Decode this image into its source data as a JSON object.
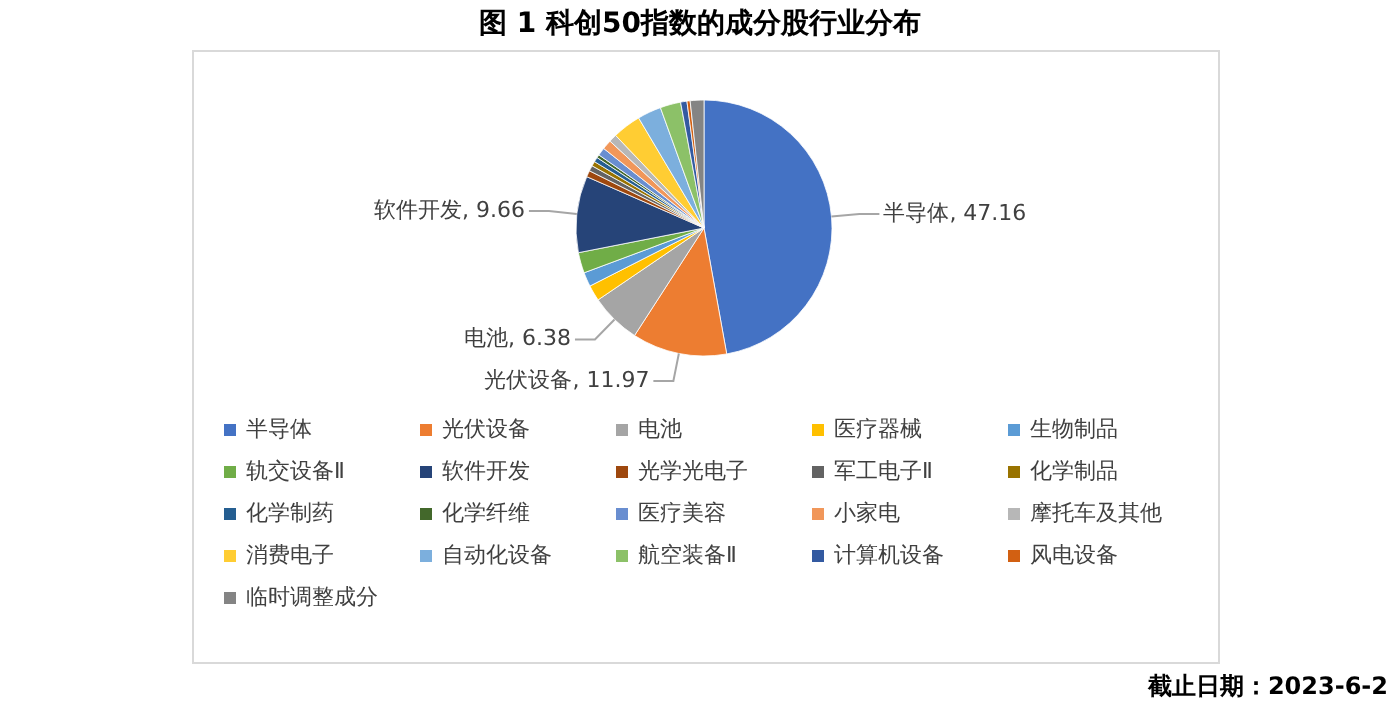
{
  "chart_data": {
    "type": "pie",
    "title": "图 1  科创50指数的成分股行业分布",
    "categories": [
      "半导体",
      "光伏设备",
      "电池",
      "医疗器械",
      "生物制品",
      "轨交设备Ⅱ",
      "软件开发",
      "光学光电子",
      "军工电子Ⅱ",
      "化学制品",
      "化学制药",
      "化学纤维",
      "医疗美容",
      "小家电",
      "摩托车及其他",
      "消费电子",
      "自动化设备",
      "航空装备Ⅱ",
      "计算机设备",
      "风电设备",
      "临时调整成分"
    ],
    "values": [
      47.16,
      11.97,
      6.38,
      2.0,
      1.8,
      2.6,
      9.66,
      0.8,
      0.7,
      0.6,
      0.6,
      0.4,
      1.0,
      1.2,
      1.0,
      3.6,
      3.0,
      2.6,
      0.8,
      0.4,
      1.73
    ],
    "colors": [
      "#4472c4",
      "#ed7d31",
      "#a5a5a5",
      "#ffc000",
      "#5b9bd5",
      "#70ad47",
      "#264478",
      "#9e480e",
      "#636363",
      "#997300",
      "#255e91",
      "#43682b",
      "#698ed0",
      "#f1975a",
      "#b7b7b7",
      "#ffcd33",
      "#7cafdd",
      "#8cc168",
      "#335aa1",
      "#d26012",
      "#848484"
    ],
    "value_labels": [
      "半导体, 47.16",
      "光伏设备, 11.97",
      "电池, 6.38",
      null,
      null,
      null,
      "软件开发, 9.66",
      null,
      null,
      null,
      null,
      null,
      null,
      null,
      null,
      null,
      null,
      null,
      null,
      null,
      null
    ],
    "legend": "bottom",
    "annotations": [
      "截止日期：2023-6-2"
    ]
  }
}
